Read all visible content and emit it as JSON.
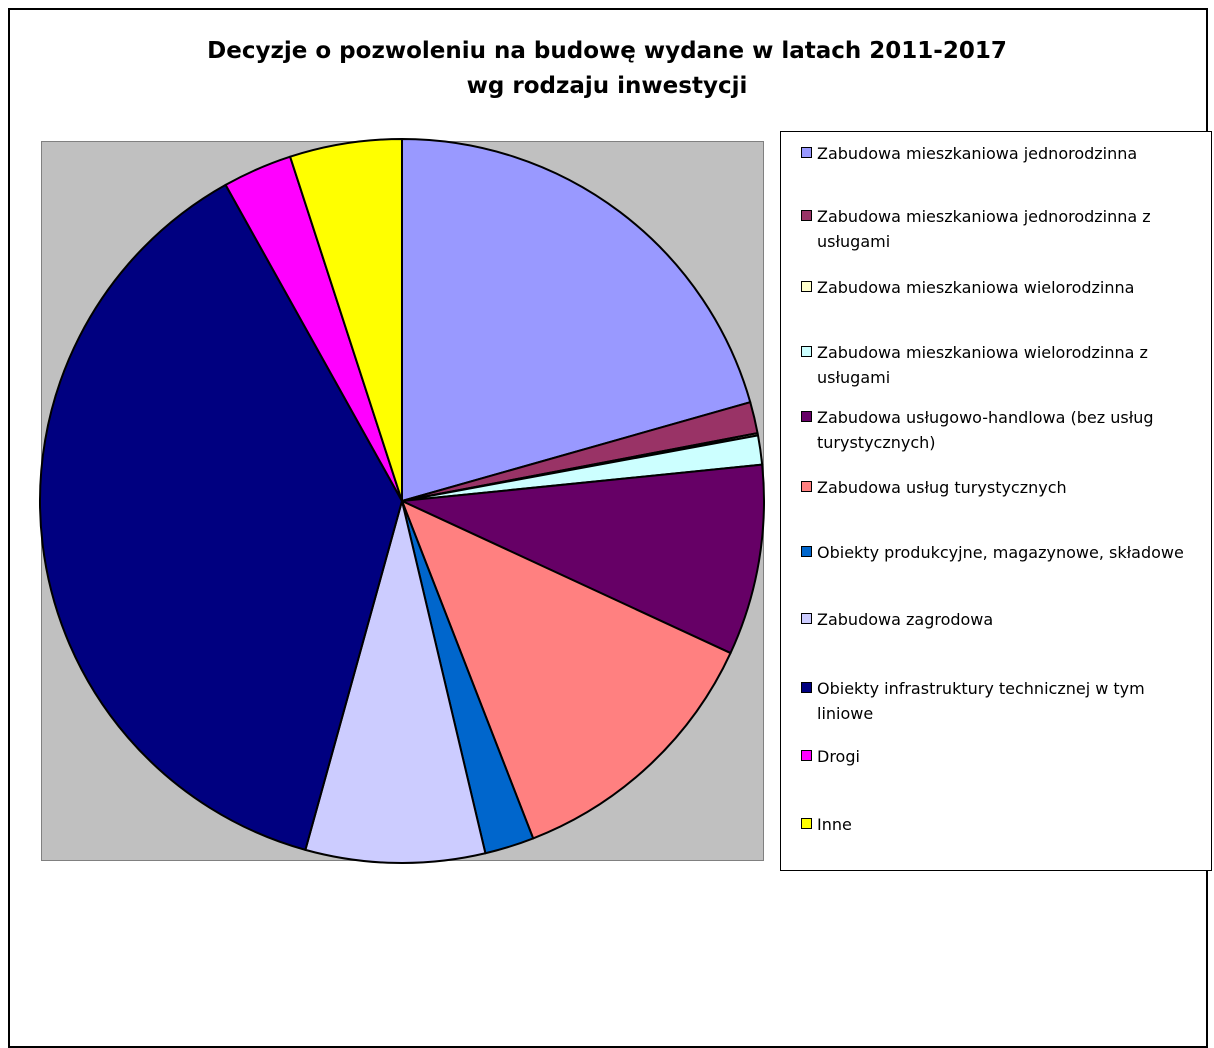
{
  "chart_data": {
    "type": "pie",
    "title": "Decyzje o pozwoleniu na budowę wydane w latach 2011-2017 wg rodzaju inwestycji",
    "title_lines": [
      "Decyzje o pozwoleniu na budowę wydane w latach 2011-2017",
      "wg rodzaju inwestycji"
    ],
    "legend_position": "right",
    "start_angle_deg": 0,
    "direction": "clockwise",
    "slices": [
      {
        "label": "Zabudowa mieszkaniowa jednorodzinna",
        "value": 20.6,
        "color": "#9999ff"
      },
      {
        "label": "Zabudowa mieszkaniowa jednorodzinna z usługami",
        "value": 1.4,
        "color": "#993366"
      },
      {
        "label": "Zabudowa mieszkaniowa wielorodzinna",
        "value": 0.1,
        "color": "#ffffcc"
      },
      {
        "label": "Zabudowa mieszkaniowa wielorodzinna z usługami",
        "value": 1.3,
        "color": "#ccffff"
      },
      {
        "label": "Zabudowa usługowo-handlowa (bez usług turystycznych)",
        "value": 8.5,
        "color": "#660066"
      },
      {
        "label": "Zabudowa usług turystycznych",
        "value": 12.2,
        "color": "#ff8080"
      },
      {
        "label": "Obiekty produkcyjne, magazynowe, składowe",
        "value": 2.2,
        "color": "#0066cc"
      },
      {
        "label": "Zabudowa zagrodowa",
        "value": 8.0,
        "color": "#ccccff"
      },
      {
        "label": "Obiekty infrastruktury technicznej w tym liniowe",
        "value": 37.6,
        "color": "#000080"
      },
      {
        "label": "Drogi",
        "value": 3.1,
        "color": "#ff00ff"
      },
      {
        "label": "Inne",
        "value": 5.0,
        "color": "#ffff00"
      }
    ]
  }
}
